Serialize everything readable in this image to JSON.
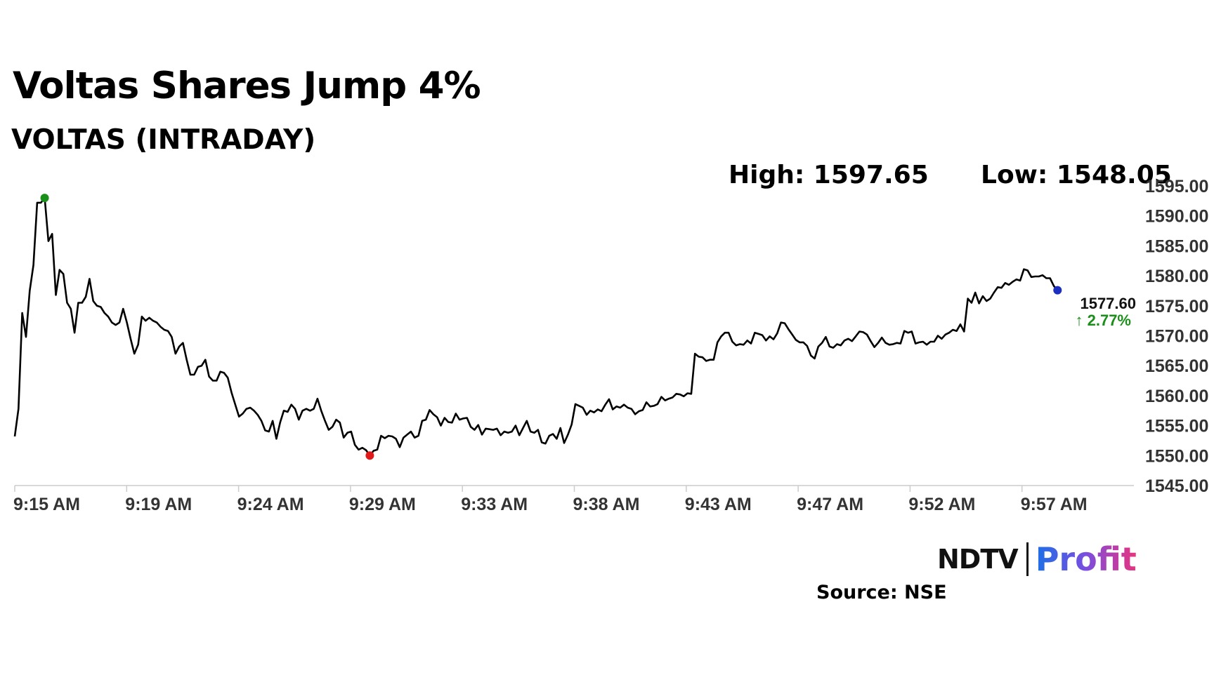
{
  "title": "Voltas Shares Jump 4%",
  "subtitle": "VOLTAS (INTRADAY)",
  "stats": {
    "high": "High: 1597.65",
    "low": "Low: 1548.05"
  },
  "logo": {
    "part1": "NDTV",
    "part2": "Profit"
  },
  "source": "Source: NSE",
  "colors": {
    "line": "#000000",
    "high_marker": "#1a8f1a",
    "low_marker": "#e01b1b",
    "last_marker": "#1d2fbf",
    "change": "#1a8f1a",
    "axis": "#cccccc"
  },
  "chart_data": {
    "type": "line",
    "title": "VOLTAS (INTRADAY)",
    "x_tick_labels": [
      "9:15 AM",
      "9:19 AM",
      "9:24 AM",
      "9:29 AM",
      "9:33 AM",
      "9:38 AM",
      "9:43 AM",
      "9:47 AM",
      "9:52 AM",
      "9:57 AM"
    ],
    "y_tick_labels": [
      "1595.00",
      "1590.00",
      "1585.00",
      "1580.00",
      "1575.00",
      "1570.00",
      "1565.00",
      "1560.00",
      "1555.00",
      "1550.00",
      "1545.00"
    ],
    "ylim": [
      1545,
      1595
    ],
    "x_axis": "9:15 AM to ~10:02 AM, one point every 10 seconds",
    "grid": false,
    "last_value": "1577.60",
    "change": "↑ 2.77%",
    "values": [
      1553.2,
      1557.8,
      1573.8,
      1569.8,
      1577.5,
      1581.8,
      1592.2,
      1592.2,
      1593.0,
      1585.8,
      1587.0,
      1576.8,
      1581.0,
      1580.3,
      1575.5,
      1574.5,
      1570.5,
      1575.5,
      1575.5,
      1576.5,
      1579.5,
      1575.8,
      1575.0,
      1574.8,
      1573.8,
      1573.2,
      1572.2,
      1571.8,
      1572.2,
      1574.5,
      1572.2,
      1569.5,
      1567.0,
      1568.5,
      1573.2,
      1572.5,
      1573.0,
      1572.5,
      1572.2,
      1571.5,
      1571.0,
      1570.8,
      1569.8,
      1567.0,
      1568.2,
      1568.8,
      1566.0,
      1563.5,
      1563.5,
      1564.8,
      1565.0,
      1566.0,
      1563.2,
      1562.5,
      1562.5,
      1564.0,
      1563.8,
      1563.0,
      1560.5,
      1558.5,
      1556.5,
      1557.0,
      1557.8,
      1558.0,
      1557.5,
      1556.8,
      1555.8,
      1554.2,
      1554.0,
      1555.8,
      1552.8,
      1555.5,
      1557.5,
      1557.3,
      1558.5,
      1557.8,
      1556.0,
      1557.5,
      1557.8,
      1557.5,
      1557.8,
      1559.5,
      1557.5,
      1555.8,
      1554.3,
      1554.8,
      1556.0,
      1555.5,
      1553.0,
      1553.8,
      1554.0,
      1551.8,
      1551.0,
      1551.3,
      1550.9,
      1550.0,
      1550.8,
      1551.0,
      1553.3,
      1552.9,
      1553.3,
      1553.2,
      1552.8,
      1551.4,
      1553.0,
      1553.5,
      1554.0,
      1553.0,
      1553.3,
      1555.8,
      1556.0,
      1557.6,
      1556.9,
      1556.4,
      1555.0,
      1556.3,
      1555.6,
      1555.5,
      1557.0,
      1556.0,
      1556.2,
      1556.3,
      1554.8,
      1554.3,
      1555.1,
      1553.5,
      1554.5,
      1554.4,
      1554.3,
      1554.5,
      1553.4,
      1554.0,
      1553.8,
      1554.0,
      1555.0,
      1553.4,
      1554.6,
      1555.8,
      1554.0,
      1553.8,
      1554.3,
      1552.2,
      1552.0,
      1553.3,
      1553.6,
      1552.8,
      1554.6,
      1552.1,
      1553.5,
      1555.2,
      1558.6,
      1558.3,
      1558.0,
      1556.8,
      1557.5,
      1557.2,
      1557.7,
      1557.4,
      1558.5,
      1559.4,
      1557.7,
      1558.2,
      1558.0,
      1558.5,
      1558.0,
      1557.8,
      1556.9,
      1557.4,
      1557.6,
      1558.9,
      1558.2,
      1558.3,
      1558.6,
      1559.8,
      1559.2,
      1559.5,
      1559.7,
      1560.3,
      1560.2,
      1559.9,
      1560.4,
      1560.3,
      1567.0,
      1566.5,
      1566.4,
      1565.8,
      1566.0,
      1566.0,
      1568.9,
      1569.9,
      1570.5,
      1570.5,
      1569.0,
      1568.4,
      1568.6,
      1568.5,
      1569.2,
      1568.7,
      1570.5,
      1570.3,
      1570.1,
      1569.2,
      1569.9,
      1569.4,
      1570.4,
      1572.2,
      1572.1,
      1571.1,
      1570.2,
      1569.3,
      1568.9,
      1568.9,
      1568.3,
      1566.7,
      1566.2,
      1568.2,
      1568.8,
      1569.8,
      1568.2,
      1568.0,
      1568.6,
      1568.4,
      1569.2,
      1569.5,
      1569.1,
      1569.9,
      1570.7,
      1570.6,
      1570.2,
      1569.1,
      1568.1,
      1568.8,
      1569.7,
      1568.8,
      1568.5,
      1568.6,
      1568.8,
      1568.7,
      1570.8,
      1570.5,
      1570.7,
      1568.7,
      1568.9,
      1569.0,
      1568.5,
      1569.0,
      1569.0,
      1570.0,
      1569.5,
      1570.2,
      1570.5,
      1571.0,
      1570.8,
      1571.9,
      1570.7,
      1576.2,
      1575.5,
      1577.2,
      1575.4,
      1576.6,
      1575.8,
      1576.2,
      1577.2,
      1578.1,
      1578.0,
      1578.8,
      1578.5,
      1579.0,
      1579.4,
      1579.2,
      1581.1,
      1580.9,
      1579.8,
      1579.9,
      1579.9,
      1580.1,
      1579.6,
      1579.6,
      1578.3,
      1577.6
    ]
  }
}
